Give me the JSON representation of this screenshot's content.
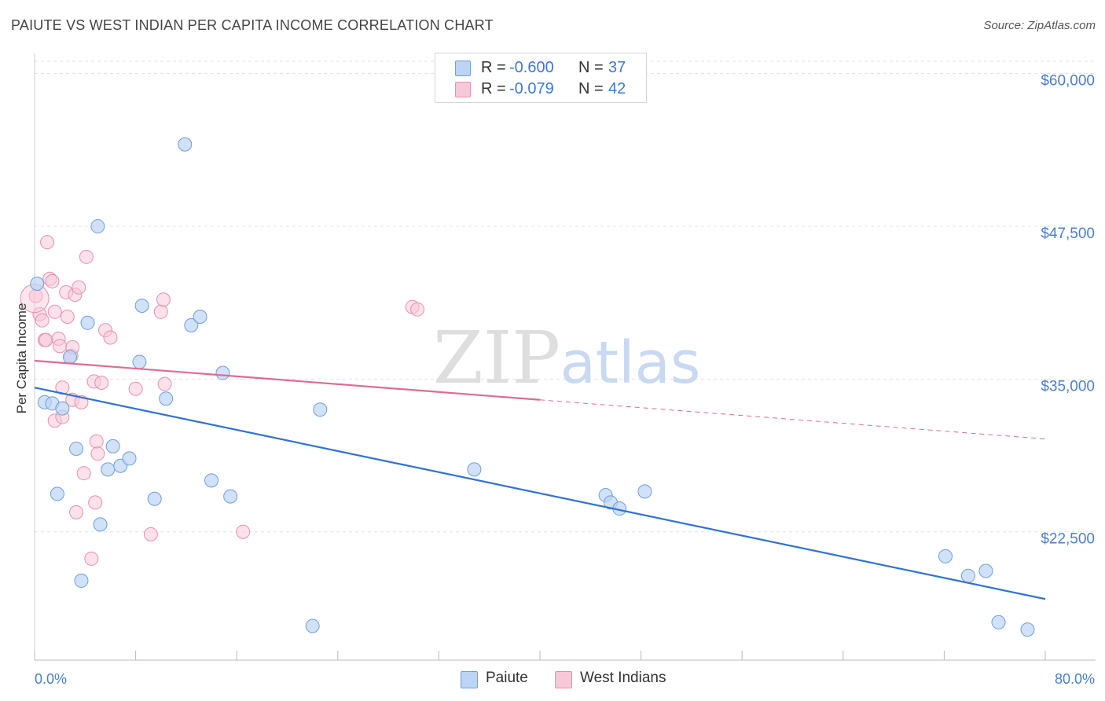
{
  "header": {
    "title": "PAIUTE VS WEST INDIAN PER CAPITA INCOME CORRELATION CHART",
    "source": "Source: ZipAtlas.com"
  },
  "watermark": {
    "zip": "ZIP",
    "atlas": "atlas"
  },
  "legend": {
    "r_label": "R =",
    "n_label": "N =",
    "rows": [
      {
        "name": "Paiute",
        "r": "-0.600",
        "n": "37"
      },
      {
        "name": "West Indians",
        "r": "-0.079",
        "n": "42"
      }
    ]
  },
  "colors": {
    "paiute_fill": "#bcd4f5",
    "paiute_stroke": "#6f9fe0",
    "paiute_line": "#2f72d6",
    "westindian_fill": "#f8c8d8",
    "westindian_stroke": "#ea8fae",
    "westindian_line": "#e06a94",
    "tick_text": "#4a7fd0",
    "grid": "#e3e3e3"
  },
  "chart_data": {
    "type": "scatter",
    "title": "PAIUTE VS WEST INDIAN PER CAPITA INCOME CORRELATION CHART",
    "xlabel": "",
    "ylabel": "Per Capita Income",
    "xlim": [
      0,
      80
    ],
    "ylim": [
      12000,
      62000
    ],
    "x_tick_labels": [
      "0.0%",
      "80.0%"
    ],
    "y_ticks": [
      22500,
      35000,
      47500,
      60000
    ],
    "y_tick_labels": [
      "$22,500",
      "$35,000",
      "$47,500",
      "$60,000"
    ],
    "grid": true,
    "series": [
      {
        "name": "Paiute",
        "points": [
          [
            0.2,
            42800
          ],
          [
            0.8,
            33100
          ],
          [
            1.4,
            33000
          ],
          [
            1.8,
            25600
          ],
          [
            2.2,
            32600
          ],
          [
            2.8,
            36800
          ],
          [
            3.3,
            29300
          ],
          [
            3.7,
            18500
          ],
          [
            4.2,
            39600
          ],
          [
            5.0,
            47500
          ],
          [
            5.2,
            23100
          ],
          [
            5.8,
            27600
          ],
          [
            6.2,
            29500
          ],
          [
            6.8,
            27900
          ],
          [
            7.5,
            28500
          ],
          [
            8.3,
            36400
          ],
          [
            8.5,
            41000
          ],
          [
            9.5,
            25200
          ],
          [
            10.4,
            33400
          ],
          [
            11.9,
            54200
          ],
          [
            12.4,
            39400
          ],
          [
            13.1,
            40100
          ],
          [
            14.0,
            26700
          ],
          [
            14.9,
            35500
          ],
          [
            15.5,
            25400
          ],
          [
            22.0,
            14800
          ],
          [
            22.6,
            32500
          ],
          [
            34.8,
            27600
          ],
          [
            45.2,
            25500
          ],
          [
            45.6,
            24900
          ],
          [
            46.3,
            24400
          ],
          [
            48.3,
            25800
          ],
          [
            72.1,
            20500
          ],
          [
            73.9,
            18900
          ],
          [
            75.3,
            19300
          ],
          [
            76.3,
            15100
          ],
          [
            78.6,
            14500
          ]
        ],
        "trend": {
          "x": [
            0,
            80
          ],
          "y": [
            34300,
            17000
          ]
        }
      },
      {
        "name": "West Indians",
        "points": [
          [
            0.1,
            41800
          ],
          [
            0.4,
            40300
          ],
          [
            0.6,
            39800
          ],
          [
            0.8,
            38200
          ],
          [
            0.9,
            38200
          ],
          [
            1.0,
            46200
          ],
          [
            1.2,
            43200
          ],
          [
            1.4,
            43000
          ],
          [
            1.6,
            40500
          ],
          [
            1.6,
            31600
          ],
          [
            1.9,
            38300
          ],
          [
            2.0,
            37700
          ],
          [
            2.2,
            34300
          ],
          [
            2.2,
            31900
          ],
          [
            2.5,
            42100
          ],
          [
            2.6,
            40100
          ],
          [
            2.9,
            36900
          ],
          [
            3.0,
            33300
          ],
          [
            3.0,
            37600
          ],
          [
            3.2,
            41900
          ],
          [
            3.3,
            24100
          ],
          [
            3.5,
            42500
          ],
          [
            3.7,
            33100
          ],
          [
            3.9,
            27300
          ],
          [
            4.1,
            45000
          ],
          [
            4.5,
            20300
          ],
          [
            4.7,
            34800
          ],
          [
            4.8,
            24900
          ],
          [
            4.9,
            29900
          ],
          [
            5.0,
            28900
          ],
          [
            5.3,
            34700
          ],
          [
            5.6,
            39000
          ],
          [
            6.0,
            38400
          ],
          [
            8.0,
            34200
          ],
          [
            9.2,
            22300
          ],
          [
            10.0,
            40500
          ],
          [
            10.2,
            41500
          ],
          [
            10.3,
            34600
          ],
          [
            16.5,
            22500
          ],
          [
            29.9,
            40900
          ],
          [
            30.3,
            40700
          ],
          [
            0.0,
            41600
          ]
        ],
        "trend": {
          "x": [
            0,
            40
          ],
          "y": [
            36500,
            33300
          ],
          "dashed_to": [
            80,
            30100
          ]
        }
      }
    ]
  }
}
